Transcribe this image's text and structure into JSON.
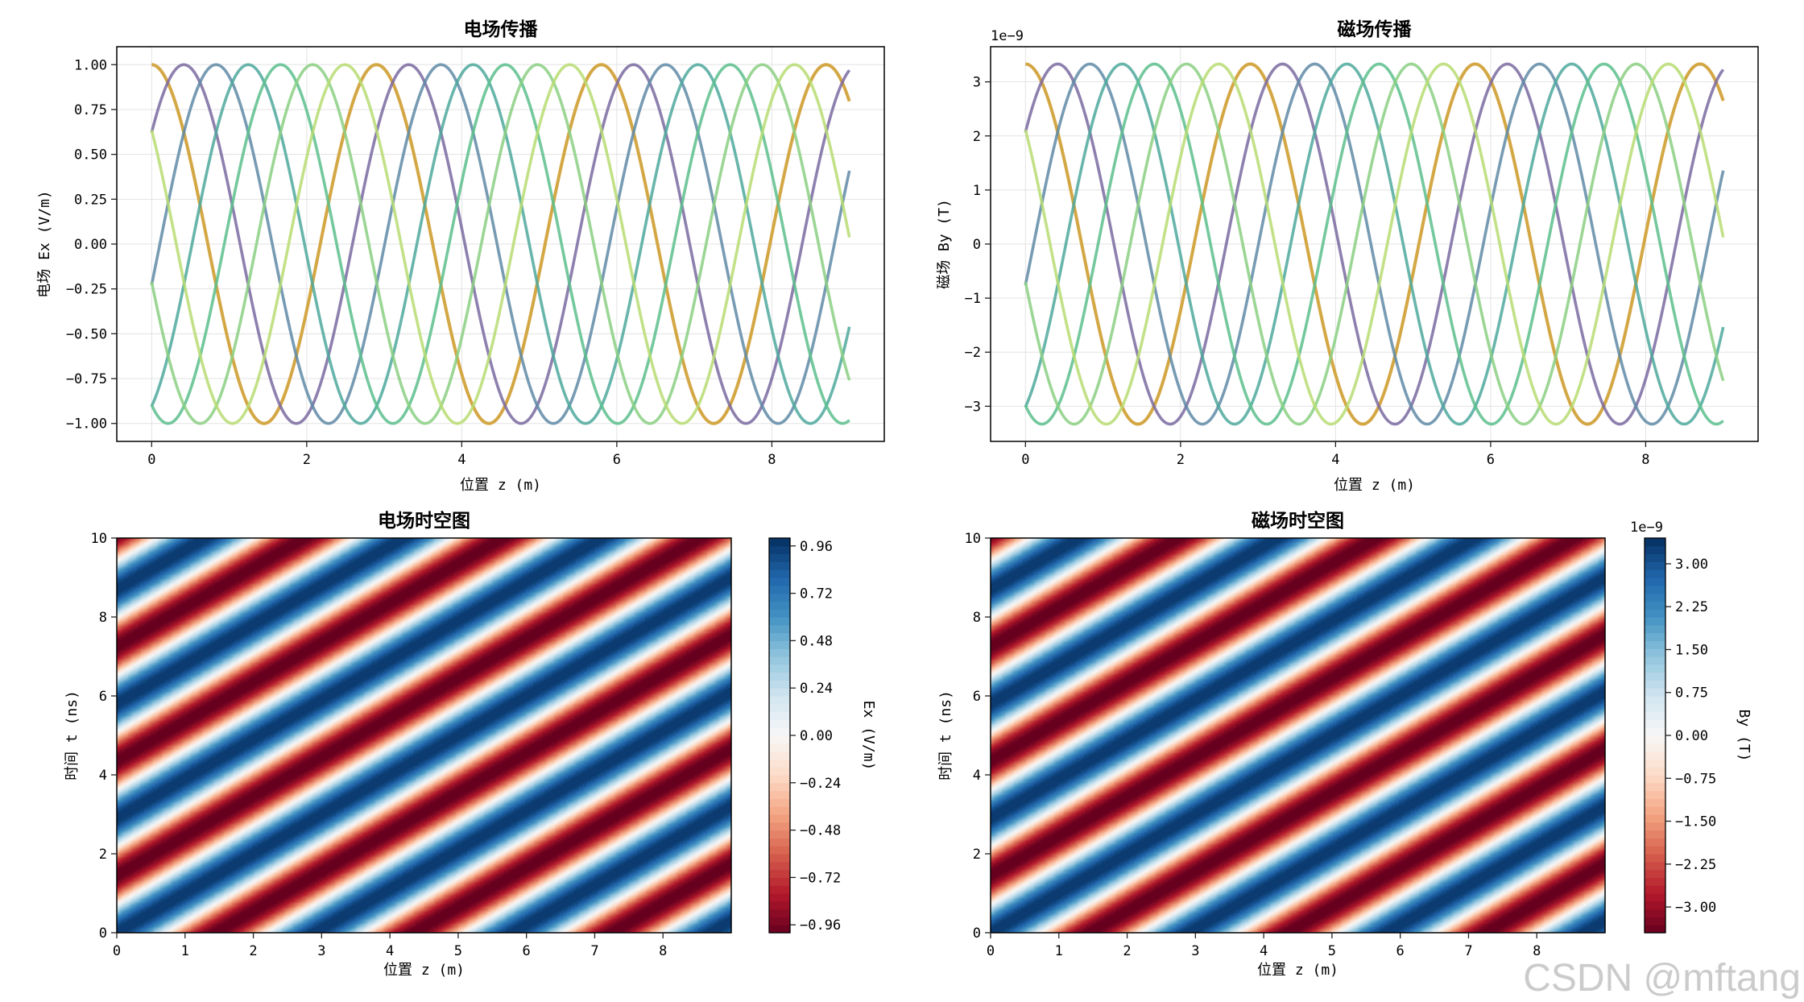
{
  "chart_data": [
    {
      "type": "line",
      "title": "电场传播",
      "xlabel": "位置 z (m)",
      "ylabel": "电场 Ex (V/m)",
      "xlim": [
        0,
        9
      ],
      "ylim": [
        -1.1,
        1.1
      ],
      "xticks": [
        0,
        2,
        4,
        6,
        8
      ],
      "yticks": [
        1.0,
        0.75,
        0.5,
        0.25,
        0.0,
        -0.25,
        -0.5,
        -0.75,
        -1.0
      ],
      "ytick_labels": [
        "1.00",
        "0.75",
        "0.50",
        "0.25",
        "0.00",
        "−0.25",
        "−0.50",
        "−0.75",
        "−1.00"
      ],
      "grid": true,
      "amplitude": 1.0,
      "wavelength_m": 2.9,
      "series": [
        {
          "phase_rad": 0.0,
          "color": "#d4a745"
        },
        {
          "phase_rad": 0.9,
          "color": "#7a6aa0"
        },
        {
          "phase_rad": 1.8,
          "color": "#5f8aa6"
        },
        {
          "phase_rad": 2.7,
          "color": "#4ea89c"
        },
        {
          "phase_rad": 3.6,
          "color": "#5cbe8c"
        },
        {
          "phase_rad": 4.5,
          "color": "#8bcf83"
        },
        {
          "phase_rad": 5.4,
          "color": "#b7dc72"
        }
      ]
    },
    {
      "type": "line",
      "title": "磁场传播",
      "xlabel": "位置 z (m)",
      "ylabel": "磁场 By (T)",
      "offset_text": "1e−9",
      "xlim": [
        0,
        9
      ],
      "ylim": [
        -3.65,
        3.65
      ],
      "xticks": [
        0,
        2,
        4,
        6,
        8
      ],
      "yticks": [
        3,
        2,
        1,
        0,
        -1,
        -2,
        -3
      ],
      "ytick_labels": [
        "3",
        "2",
        "1",
        "0",
        "−1",
        "−2",
        "−3"
      ],
      "grid": true,
      "amplitude": 3.33,
      "wavelength_m": 2.9,
      "series": [
        {
          "phase_rad": 0.0,
          "color": "#d4a745"
        },
        {
          "phase_rad": 0.9,
          "color": "#7a6aa0"
        },
        {
          "phase_rad": 1.8,
          "color": "#5f8aa6"
        },
        {
          "phase_rad": 2.7,
          "color": "#4ea89c"
        },
        {
          "phase_rad": 3.6,
          "color": "#5cbe8c"
        },
        {
          "phase_rad": 4.5,
          "color": "#8bcf83"
        },
        {
          "phase_rad": 5.4,
          "color": "#b7dc72"
        }
      ]
    },
    {
      "type": "heatmap",
      "title": "电场时空图",
      "xlabel": "位置 z (m)",
      "ylabel": "时间 t (ns)",
      "xlim": [
        0,
        9
      ],
      "ylim": [
        0,
        10
      ],
      "xticks": [
        0,
        1,
        2,
        3,
        4,
        5,
        6,
        7,
        8
      ],
      "yticks": [
        0,
        2,
        4,
        6,
        8,
        10
      ],
      "wavelength_m": 2.9,
      "period_ns": 2.9,
      "colormap": "RdBu",
      "colorbar_label": "Ex (V/m)",
      "colorbar_range": [
        -1,
        1
      ],
      "colorbar_ticks": [
        0.96,
        0.72,
        0.48,
        0.24,
        0.0,
        -0.24,
        -0.48,
        -0.72,
        -0.96
      ],
      "colorbar_tick_labels": [
        "0.96",
        "0.72",
        "0.48",
        "0.24",
        "0.00",
        "−0.24",
        "−0.48",
        "−0.72",
        "−0.96"
      ]
    },
    {
      "type": "heatmap",
      "title": "磁场时空图",
      "xlabel": "位置 z (m)",
      "ylabel": "时间 t (ns)",
      "xlim": [
        0,
        9
      ],
      "ylim": [
        0,
        10
      ],
      "xticks": [
        0,
        1,
        2,
        3,
        4,
        5,
        6,
        7,
        8
      ],
      "yticks": [
        0,
        2,
        4,
        6,
        8,
        10
      ],
      "wavelength_m": 2.9,
      "period_ns": 2.9,
      "colormap": "RdBu",
      "colorbar_label": "By (T)",
      "offset_text": "1e−9",
      "colorbar_range": [
        -3.45,
        3.45
      ],
      "colorbar_ticks": [
        3.0,
        2.25,
        1.5,
        0.75,
        0.0,
        -0.75,
        -1.5,
        -2.25,
        -3.0
      ],
      "colorbar_tick_labels": [
        "3.00",
        "2.25",
        "1.50",
        "0.75",
        "0.00",
        "−0.75",
        "−1.50",
        "−2.25",
        "−3.00"
      ]
    }
  ],
  "watermark": "CSDN @mftang"
}
